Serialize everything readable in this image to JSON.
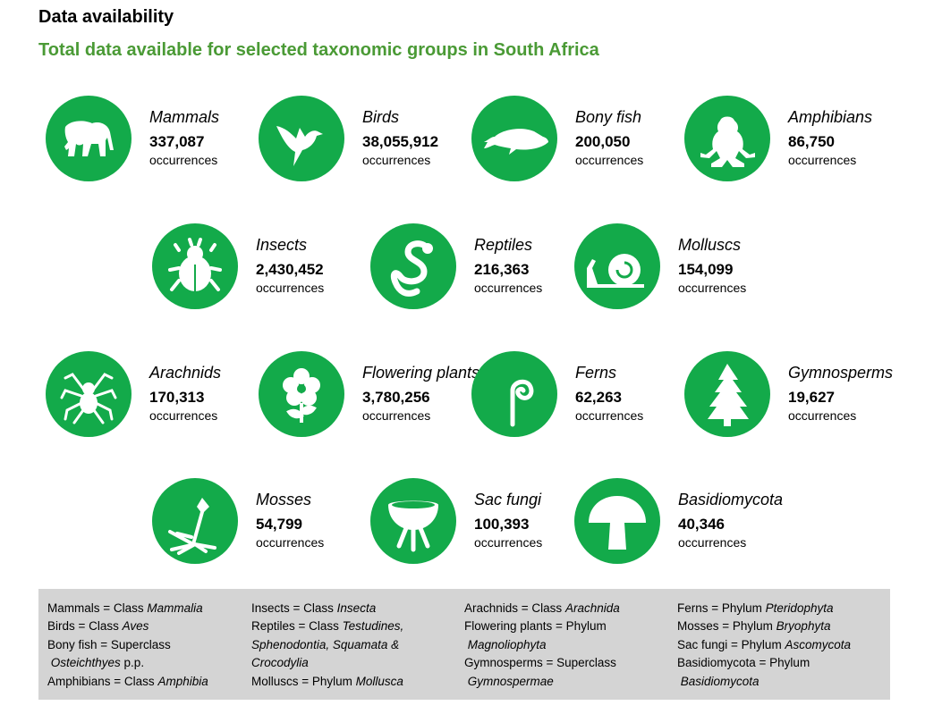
{
  "title": "Data availability",
  "subtitle": "Total data available for selected taxonomic groups in South Africa",
  "colors": {
    "icon_bg": "#13aa4a",
    "subtitle": "#4a9a35",
    "legend_bg": "#d4d4d4"
  },
  "unit_label": "occurrences",
  "groups": [
    {
      "name": "Mammals",
      "count": "337,087",
      "icon": "elephant-icon"
    },
    {
      "name": "Birds",
      "count": "38,055,912",
      "icon": "bird-icon"
    },
    {
      "name": "Bony fish",
      "count": "200,050",
      "icon": "fish-icon"
    },
    {
      "name": "Amphibians",
      "count": "86,750",
      "icon": "frog-icon"
    },
    {
      "name": "Insects",
      "count": "2,430,452",
      "icon": "beetle-icon"
    },
    {
      "name": "Reptiles",
      "count": "216,363",
      "icon": "snake-icon"
    },
    {
      "name": "Molluscs",
      "count": "154,099",
      "icon": "snail-icon"
    },
    {
      "name": "Arachnids",
      "count": "170,313",
      "icon": "spider-icon"
    },
    {
      "name": "Flowering plants",
      "count": "3,780,256",
      "icon": "flower-icon"
    },
    {
      "name": "Ferns",
      "count": "62,263",
      "icon": "fern-icon"
    },
    {
      "name": "Gymnosperms",
      "count": "19,627",
      "icon": "conifer-icon"
    },
    {
      "name": "Mosses",
      "count": "54,799",
      "icon": "moss-icon"
    },
    {
      "name": "Sac fungi",
      "count": "100,393",
      "icon": "cup-fungus-icon"
    },
    {
      "name": "Basidiomycota",
      "count": "40,346",
      "icon": "mushroom-icon"
    }
  ],
  "legend": [
    [
      [
        [
          "Mammals = Class ",
          0
        ],
        [
          "Mammalia",
          1
        ]
      ],
      [
        [
          "Birds = Class ",
          0
        ],
        [
          "Aves",
          1
        ]
      ],
      [
        [
          "Bony fish = Superclass",
          0
        ]
      ],
      [
        [
          " Osteichthyes",
          1
        ],
        [
          " p.p.",
          0
        ]
      ],
      [
        [
          "Amphibians = Class ",
          0
        ],
        [
          "Amphibia",
          1
        ]
      ]
    ],
    [
      [
        [
          "Insects = Class ",
          0
        ],
        [
          "Insecta",
          1
        ]
      ],
      [
        [
          "Reptiles = Class ",
          0
        ],
        [
          "Testudines,",
          1
        ]
      ],
      [
        [
          "Sphenodontia, Squamata &",
          1
        ]
      ],
      [
        [
          "Crocodylia",
          1
        ]
      ],
      [
        [
          "Molluscs = Phylum ",
          0
        ],
        [
          "Mollusca",
          1
        ]
      ]
    ],
    [
      [
        [
          "Arachnids = Class ",
          0
        ],
        [
          "Arachnida",
          1
        ]
      ],
      [
        [
          "Flowering plants = Phylum",
          0
        ]
      ],
      [
        [
          " Magnoliophyta",
          1
        ]
      ],
      [
        [
          "Gymnosperms = Superclass",
          0
        ]
      ],
      [
        [
          " Gymnospermae",
          1
        ]
      ]
    ],
    [
      [
        [
          "Ferns = Phylum ",
          0
        ],
        [
          "Pteridophyta",
          1
        ]
      ],
      [
        [
          "Mosses = Phylum ",
          0
        ],
        [
          "Bryophyta",
          1
        ]
      ],
      [
        [
          "Sac fungi = Phylum ",
          0
        ],
        [
          "Ascomycota",
          1
        ]
      ],
      [
        [
          "Basidiomycota = Phylum",
          0
        ]
      ],
      [
        [
          " Basidiomycota",
          1
        ]
      ]
    ]
  ]
}
